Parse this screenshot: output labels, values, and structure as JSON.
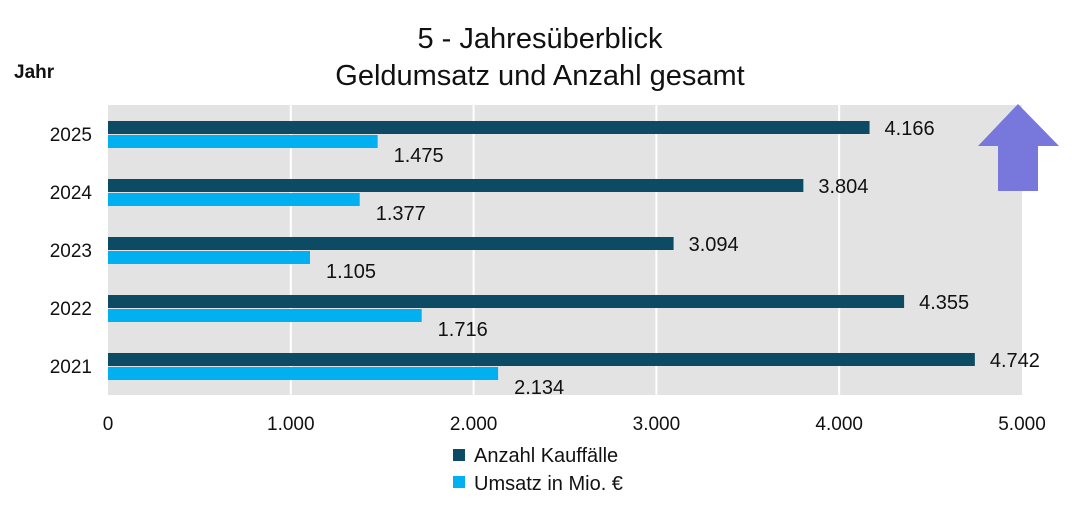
{
  "chart_data": {
    "type": "bar",
    "orientation": "horizontal",
    "title": "5 - Jahresüberblick",
    "subtitle": "Geldumsatz und Anzahl gesamt",
    "ylabel": "Jahr",
    "xlabel": "",
    "categories": [
      "2025",
      "2024",
      "2023",
      "2022",
      "2021"
    ],
    "series": [
      {
        "name": "Anzahl Kauffälle",
        "color": "#0d4a63",
        "values": [
          4166,
          3804,
          3094,
          4355,
          4742
        ],
        "labels": [
          "4.166",
          "3.804",
          "3.094",
          "4.355",
          "4.742"
        ]
      },
      {
        "name": "Umsatz in Mio. €",
        "color": "#00b0f0",
        "values": [
          1475,
          1377,
          1105,
          1716,
          2134
        ],
        "labels": [
          "1.475",
          "1.377",
          "1.105",
          "1.716",
          "2.134"
        ]
      }
    ],
    "xlim": [
      0,
      5000
    ],
    "xticks": [
      0,
      1000,
      2000,
      3000,
      4000,
      5000
    ],
    "xtick_labels": [
      "0",
      "1.000",
      "2.000",
      "3.000",
      "4.000",
      "5.000"
    ],
    "grid": true,
    "legend": "bottom-center",
    "annotation_icon": "up-arrow-icon",
    "arrow_color": "#7878dc",
    "plot_bg": "#e3e3e3"
  }
}
